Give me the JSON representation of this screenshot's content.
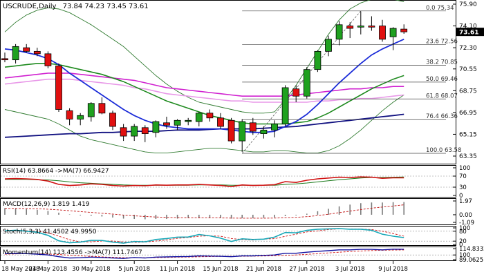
{
  "header": {
    "symbol": "USCRUDE,Daily",
    "ohlc": "73.84 74.23 73.45 73.61"
  },
  "colors": {
    "bull": "#1fa11f",
    "bear": "#e01010",
    "ma_fast": "#1a2bd8",
    "ma_green": "#1e8a1e",
    "ma_purple": "#d020d0",
    "ma_pink": "#e898e8",
    "ma_navy": "#101080",
    "bollinger": "#2f7a2f",
    "fib": "#444444"
  },
  "price_panel": {
    "y_axis_labels": [
      "75.90",
      "74.10",
      "72.30",
      "70.55",
      "68.75",
      "66.95",
      "65.15",
      "63.35"
    ],
    "current_price": "73.61",
    "fib_levels": [
      {
        "label": "0.0 75.34",
        "value": 75.34
      },
      {
        "label": "23.6 72.56",
        "value": 72.56
      },
      {
        "label": "38.2 70.85",
        "value": 70.85
      },
      {
        "label": "50.0 69.46",
        "value": 69.46
      },
      {
        "label": "61.8 68.07",
        "value": 68.07
      },
      {
        "label": "76.4 66.36",
        "value": 66.36
      },
      {
        "label": "100.0 63.58",
        "value": 63.58
      }
    ]
  },
  "rsi_panel": {
    "title": "RSI(14) 63.8664 ->MA(7) 66.9427",
    "y_axis_labels": [
      "100",
      "70",
      "30",
      "0"
    ]
  },
  "macd_panel": {
    "title": "MACD(12,26,9) 1.819 1.419",
    "y_axis_labels": [
      "1.97",
      "0.00",
      "-1.09"
    ]
  },
  "stoch_panel": {
    "title": "Stoch(5,3,3) 41.4502 49.9950",
    "y_axis_labels": [
      "100",
      "80",
      "20",
      "0"
    ]
  },
  "momentum_panel": {
    "title": "Momentum(14) 113.4556 ->MA(7) 111.7467",
    "y_axis_labels": [
      "114.8332",
      "100",
      "89.0625"
    ]
  },
  "x_axis_labels": [
    "18 May 2018",
    "24 May 2018",
    "30 May 2018",
    "5 Jun 2018",
    "11 Jun 2018",
    "15 Jun 2018",
    "21 Jun 2018",
    "27 Jun 2018",
    "3 Jul 2018",
    "9 Jul 2018"
  ],
  "chart_data": {
    "type": "candlestick",
    "title": "USCRUDE,Daily",
    "ylim": [
      63.35,
      75.9
    ],
    "candles": [
      {
        "o": 71.4,
        "h": 71.9,
        "l": 71.1,
        "c": 71.3
      },
      {
        "o": 71.3,
        "h": 72.6,
        "l": 71.0,
        "c": 72.4
      },
      {
        "o": 72.3,
        "h": 72.6,
        "l": 71.9,
        "c": 72.0
      },
      {
        "o": 72.0,
        "h": 72.3,
        "l": 71.6,
        "c": 71.8
      },
      {
        "o": 71.8,
        "h": 72.0,
        "l": 70.6,
        "c": 70.8
      },
      {
        "o": 70.8,
        "h": 71.0,
        "l": 67.0,
        "c": 67.2
      },
      {
        "o": 67.1,
        "h": 67.3,
        "l": 65.9,
        "c": 66.4
      },
      {
        "o": 66.4,
        "h": 66.9,
        "l": 65.9,
        "c": 66.7
      },
      {
        "o": 66.6,
        "h": 67.8,
        "l": 66.2,
        "c": 67.7
      },
      {
        "o": 67.7,
        "h": 68.2,
        "l": 66.8,
        "c": 66.9
      },
      {
        "o": 66.9,
        "h": 67.1,
        "l": 65.5,
        "c": 65.8
      },
      {
        "o": 65.7,
        "h": 66.0,
        "l": 64.6,
        "c": 65.0
      },
      {
        "o": 65.0,
        "h": 66.0,
        "l": 64.6,
        "c": 65.8
      },
      {
        "o": 65.7,
        "h": 65.9,
        "l": 64.5,
        "c": 65.2
      },
      {
        "o": 65.3,
        "h": 66.3,
        "l": 64.9,
        "c": 66.2
      },
      {
        "o": 66.1,
        "h": 66.6,
        "l": 65.6,
        "c": 65.9
      },
      {
        "o": 65.9,
        "h": 66.4,
        "l": 65.5,
        "c": 66.3
      },
      {
        "o": 66.2,
        "h": 66.5,
        "l": 65.9,
        "c": 66.3
      },
      {
        "o": 66.2,
        "h": 67.0,
        "l": 65.8,
        "c": 66.9
      },
      {
        "o": 66.9,
        "h": 67.2,
        "l": 66.2,
        "c": 66.5
      },
      {
        "o": 66.5,
        "h": 66.9,
        "l": 65.6,
        "c": 65.8
      },
      {
        "o": 66.3,
        "h": 66.5,
        "l": 64.4,
        "c": 64.6
      },
      {
        "o": 64.6,
        "h": 66.4,
        "l": 63.7,
        "c": 66.2
      },
      {
        "o": 66.1,
        "h": 66.5,
        "l": 65.1,
        "c": 65.4
      },
      {
        "o": 65.2,
        "h": 65.8,
        "l": 64.8,
        "c": 65.5
      },
      {
        "o": 65.5,
        "h": 66.3,
        "l": 64.9,
        "c": 66.0
      },
      {
        "o": 66.0,
        "h": 69.2,
        "l": 65.8,
        "c": 69.0
      },
      {
        "o": 68.9,
        "h": 69.2,
        "l": 67.8,
        "c": 68.3
      },
      {
        "o": 68.3,
        "h": 70.7,
        "l": 68.1,
        "c": 70.5
      },
      {
        "o": 70.5,
        "h": 72.1,
        "l": 70.3,
        "c": 72.0
      },
      {
        "o": 72.0,
        "h": 73.3,
        "l": 71.6,
        "c": 73.0
      },
      {
        "o": 73.0,
        "h": 74.5,
        "l": 72.5,
        "c": 74.2
      },
      {
        "o": 74.1,
        "h": 74.4,
        "l": 73.1,
        "c": 73.9
      },
      {
        "o": 74.0,
        "h": 75.3,
        "l": 73.4,
        "c": 74.1
      },
      {
        "o": 74.1,
        "h": 74.9,
        "l": 73.7,
        "c": 74.0
      },
      {
        "o": 74.1,
        "h": 74.6,
        "l": 72.8,
        "c": 73.0
      },
      {
        "o": 73.2,
        "h": 74.0,
        "l": 72.1,
        "c": 73.9
      },
      {
        "o": 73.84,
        "h": 74.23,
        "l": 73.45,
        "c": 73.61
      }
    ],
    "ma_fast": [
      72.2,
      72.1,
      71.9,
      71.7,
      71.4,
      70.9,
      70.2,
      69.6,
      69.0,
      68.4,
      67.8,
      67.2,
      66.7,
      66.3,
      66.0,
      65.8,
      65.7,
      65.6,
      65.6,
      65.6,
      65.6,
      65.5,
      65.4,
      65.3,
      65.3,
      65.4,
      65.8,
      66.2,
      66.8,
      67.6,
      68.5,
      69.4,
      70.2,
      71.0,
      71.7,
      72.2,
      72.6,
      73.0
    ],
    "ma_green": [
      70.7,
      70.8,
      70.9,
      71.0,
      71.0,
      70.9,
      70.7,
      70.5,
      70.3,
      70.1,
      69.8,
      69.5,
      69.1,
      68.7,
      68.3,
      67.9,
      67.6,
      67.3,
      67.0,
      66.7,
      66.5,
      66.3,
      66.1,
      66.0,
      66.0,
      66.0,
      66.0,
      66.1,
      66.2,
      66.5,
      66.9,
      67.4,
      67.9,
      68.4,
      68.9,
      69.3,
      69.7,
      70.0
    ],
    "ma_purple": [
      69.8,
      69.9,
      70.0,
      70.1,
      70.2,
      70.2,
      70.2,
      70.1,
      70.0,
      69.9,
      69.8,
      69.7,
      69.6,
      69.4,
      69.2,
      69.0,
      68.9,
      68.8,
      68.7,
      68.6,
      68.5,
      68.4,
      68.3,
      68.3,
      68.3,
      68.3,
      68.3,
      68.4,
      68.5,
      68.6,
      68.7,
      68.8,
      68.9,
      68.9,
      69.0,
      69.0,
      69.1,
      69.1
    ],
    "ma_pink": [
      69.3,
      69.4,
      69.5,
      69.6,
      69.7,
      69.7,
      69.7,
      69.6,
      69.5,
      69.4,
      69.3,
      69.2,
      69.0,
      68.9,
      68.7,
      68.5,
      68.4,
      68.3,
      68.2,
      68.1,
      68.0,
      67.9,
      67.9,
      67.8,
      67.8,
      67.8,
      67.8,
      67.8,
      67.8,
      67.9,
      67.9,
      68.0,
      68.0,
      68.1,
      68.1,
      68.2,
      68.3,
      68.4
    ],
    "ma_navy": [
      64.9,
      64.95,
      65.0,
      65.05,
      65.1,
      65.15,
      65.2,
      65.2,
      65.25,
      65.3,
      65.3,
      65.35,
      65.4,
      65.4,
      65.4,
      65.45,
      65.5,
      65.5,
      65.5,
      65.55,
      65.6,
      65.6,
      65.6,
      65.6,
      65.65,
      65.7,
      65.75,
      65.8,
      65.9,
      66.0,
      66.1,
      66.2,
      66.3,
      66.4,
      66.5,
      66.6,
      66.7,
      66.8
    ],
    "bb_upper": [
      73.6,
      74.4,
      75.0,
      75.4,
      75.6,
      75.5,
      75.2,
      74.7,
      74.2,
      73.6,
      73.0,
      72.4,
      71.6,
      70.8,
      70.0,
      69.3,
      68.7,
      68.2,
      67.8,
      67.6,
      67.4,
      67.2,
      67.0,
      66.9,
      66.9,
      67.0,
      68.0,
      69.2,
      70.6,
      72.0,
      73.4,
      74.6,
      75.5,
      76.0,
      76.3,
      76.4,
      76.3,
      76.1
    ],
    "bb_lower": [
      67.2,
      67.0,
      66.8,
      66.6,
      66.4,
      66.0,
      65.5,
      65.0,
      64.7,
      64.5,
      64.3,
      64.1,
      63.9,
      63.7,
      63.6,
      63.6,
      63.7,
      63.8,
      63.9,
      64.0,
      64.0,
      63.9,
      63.8,
      63.7,
      63.7,
      63.8,
      63.8,
      63.7,
      63.6,
      63.6,
      63.8,
      64.2,
      64.8,
      65.5,
      66.3,
      67.1,
      67.8,
      68.4
    ],
    "rsi": {
      "ylim": [
        0,
        100
      ],
      "levels": [
        70,
        30
      ],
      "rsi": [
        60,
        61,
        60,
        58,
        52,
        40,
        36,
        38,
        42,
        40,
        36,
        34,
        36,
        35,
        38,
        37,
        38,
        38,
        40,
        38,
        36,
        32,
        38,
        36,
        37,
        39,
        50,
        47,
        55,
        60,
        63,
        66,
        65,
        67,
        66,
        62,
        64,
        63.87
      ],
      "rsi_ma": [
        58,
        58,
        58,
        57,
        56,
        53,
        49,
        46,
        44,
        42,
        40,
        38,
        37,
        37,
        37,
        37,
        37,
        37,
        38,
        38,
        38,
        37,
        37,
        37,
        37,
        37,
        40,
        42,
        45,
        49,
        53,
        57,
        60,
        63,
        65,
        65,
        66,
        66.94
      ]
    },
    "macd": {
      "ylim": [
        -1.09,
        1.97
      ],
      "histogram": [
        0.95,
        0.9,
        0.8,
        0.7,
        0.55,
        0.3,
        0.05,
        -0.1,
        -0.15,
        -0.25,
        -0.4,
        -0.55,
        -0.6,
        -0.65,
        -0.6,
        -0.6,
        -0.55,
        -0.5,
        -0.45,
        -0.45,
        -0.45,
        -0.55,
        -0.5,
        -0.5,
        -0.45,
        -0.4,
        -0.2,
        -0.1,
        0.15,
        0.5,
        0.85,
        1.2,
        1.45,
        1.65,
        1.75,
        1.75,
        1.8,
        1.819
      ],
      "signal": [
        0.9,
        0.9,
        0.88,
        0.85,
        0.8,
        0.7,
        0.58,
        0.45,
        0.33,
        0.21,
        0.09,
        -0.04,
        -0.15,
        -0.25,
        -0.32,
        -0.38,
        -0.42,
        -0.44,
        -0.45,
        -0.46,
        -0.46,
        -0.48,
        -0.49,
        -0.49,
        -0.49,
        -0.48,
        -0.43,
        -0.37,
        -0.27,
        -0.12,
        0.07,
        0.3,
        0.52,
        0.74,
        0.94,
        1.1,
        1.25,
        1.419
      ]
    },
    "stoch": {
      "ylim": [
        0,
        100
      ],
      "levels": [
        80,
        20
      ],
      "k": [
        82,
        86,
        80,
        74,
        55,
        22,
        10,
        14,
        25,
        24,
        14,
        8,
        18,
        16,
        30,
        36,
        44,
        45,
        60,
        52,
        38,
        18,
        34,
        30,
        32,
        44,
        72,
        70,
        85,
        92,
        94,
        96,
        92,
        92,
        86,
        62,
        50,
        41.45
      ],
      "d": [
        80,
        82,
        83,
        80,
        70,
        50,
        29,
        15,
        16,
        21,
        21,
        15,
        13,
        14,
        21,
        27,
        37,
        42,
        50,
        52,
        50,
        36,
        30,
        27,
        32,
        35,
        49,
        62,
        76,
        82,
        90,
        94,
        94,
        93,
        90,
        80,
        66,
        49.995
      ]
    },
    "momentum": {
      "ylim": [
        89.0625,
        114.8332
      ],
      "levels": [
        100
      ],
      "momentum": [
        103,
        103.5,
        103,
        102,
        100,
        96,
        93,
        93.5,
        95,
        94,
        93,
        92,
        94,
        93,
        95,
        95.5,
        96,
        96.5,
        98,
        97.5,
        97,
        96,
        98,
        98,
        99,
        100,
        104,
        104,
        106.5,
        108.5,
        110,
        112,
        112,
        113,
        113,
        112,
        113.5,
        113.46
      ],
      "momentum_ma": [
        102,
        102.5,
        102.8,
        102.8,
        102.3,
        101,
        99.5,
        98,
        96.8,
        95.5,
        94.5,
        93.8,
        93.6,
        93.5,
        93.8,
        94.2,
        94.8,
        95.2,
        95.8,
        96.3,
        96.6,
        96.8,
        97,
        97.3,
        97.6,
        98,
        99,
        100,
        101.5,
        103,
        104.8,
        106.5,
        108,
        109.3,
        110.3,
        111,
        111.5,
        111.75
      ]
    }
  }
}
